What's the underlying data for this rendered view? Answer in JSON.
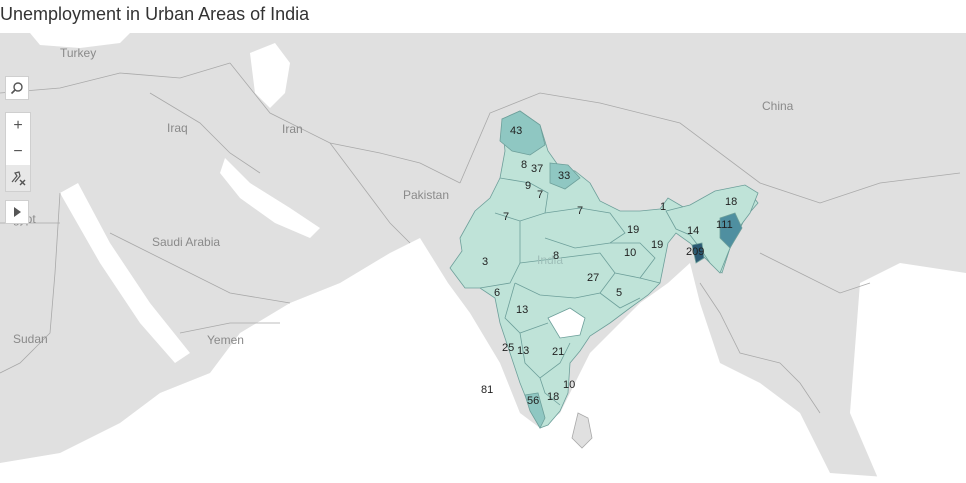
{
  "title": "Unemployment in Urban Areas of India",
  "countries": [
    "Turkey",
    "Iraq",
    "Iran",
    "Egypt",
    "Saudi Arabia",
    "Pakistan",
    "China",
    "Sudan",
    "Yemen",
    "India"
  ],
  "regions": [
    {
      "name": "Jammu and Kashmir",
      "value": "43"
    },
    {
      "name": "Himachal Pradesh",
      "value": "8"
    },
    {
      "name": "Punjab",
      "value": "9"
    },
    {
      "name": "Chandigarh",
      "value": "37"
    },
    {
      "name": "Uttarakhand",
      "value": "33"
    },
    {
      "name": "Haryana",
      "value": "7"
    },
    {
      "name": "Rajasthan",
      "value": "7"
    },
    {
      "name": "Uttar Pradesh",
      "value": "7"
    },
    {
      "name": "Gujarat",
      "value": "3"
    },
    {
      "name": "Madhya Pradesh",
      "value": "8"
    },
    {
      "name": "Bihar",
      "value": "19"
    },
    {
      "name": "Jharkhand",
      "value": "10"
    },
    {
      "name": "West Bengal",
      "value": "19"
    },
    {
      "name": "Sikkim",
      "value": "1"
    },
    {
      "name": "Arunachal Pradesh",
      "value": "18"
    },
    {
      "name": "Meghalaya",
      "value": "14"
    },
    {
      "name": "Nagaland",
      "value": "111"
    },
    {
      "name": "Tripura",
      "value": "209"
    },
    {
      "name": "Chhattisgarh",
      "value": "27"
    },
    {
      "name": "Odisha",
      "value": "5"
    },
    {
      "name": "Daman and Diu",
      "value": "6"
    },
    {
      "name": "Maharashtra",
      "value": "13"
    },
    {
      "name": "Goa",
      "value": "25"
    },
    {
      "name": "Karnataka",
      "value": "13"
    },
    {
      "name": "Andhra Pradesh",
      "value": "21"
    },
    {
      "name": "Puducherry",
      "value": "10"
    },
    {
      "name": "Tamil Nadu",
      "value": "18"
    },
    {
      "name": "Kerala",
      "value": "56"
    },
    {
      "name": "Lakshadweep",
      "value": "81"
    }
  ],
  "colors": {
    "water": "#ffffff",
    "land": "#e0e0e0",
    "border": "#a9a9a9",
    "india_light": "#bfe3d8",
    "india_mid": "#8fc7c2",
    "india_dark": "#4f8fa0",
    "india_darkest": "#2c5a73",
    "india_border": "#6d9f9a"
  },
  "toolbar": {
    "search_icon": "search-icon",
    "zoom_in": "+",
    "zoom_out": "−",
    "reset_icon": "pin-reset-icon",
    "play_icon": "play-icon"
  }
}
